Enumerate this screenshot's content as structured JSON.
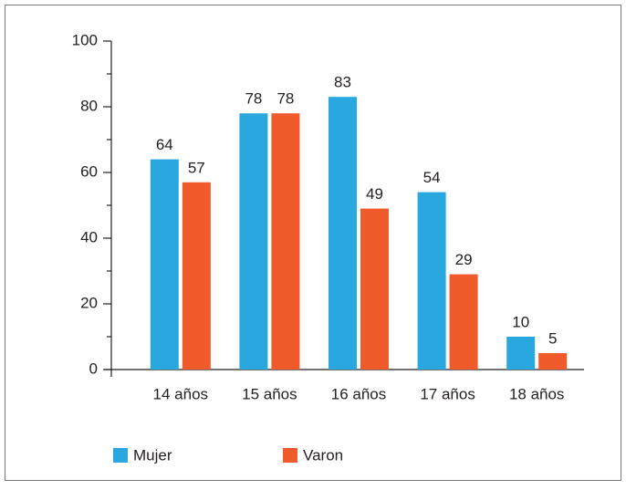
{
  "chart_data": {
    "type": "bar",
    "categories": [
      "14 años",
      "15 años",
      "16 años",
      "17 años",
      "18 años"
    ],
    "series": [
      {
        "name": "Mujer",
        "color": "#29a8e0",
        "values": [
          64,
          78,
          83,
          54,
          10
        ]
      },
      {
        "name": "Varon",
        "color": "#f15a2b",
        "values": [
          57,
          78,
          49,
          29,
          5
        ]
      }
    ],
    "ylim": [
      0,
      100
    ],
    "yticks": [
      0,
      20,
      40,
      60,
      80,
      100
    ],
    "yminorticks": [
      10,
      30,
      50,
      70,
      90
    ],
    "data_labels": true
  }
}
